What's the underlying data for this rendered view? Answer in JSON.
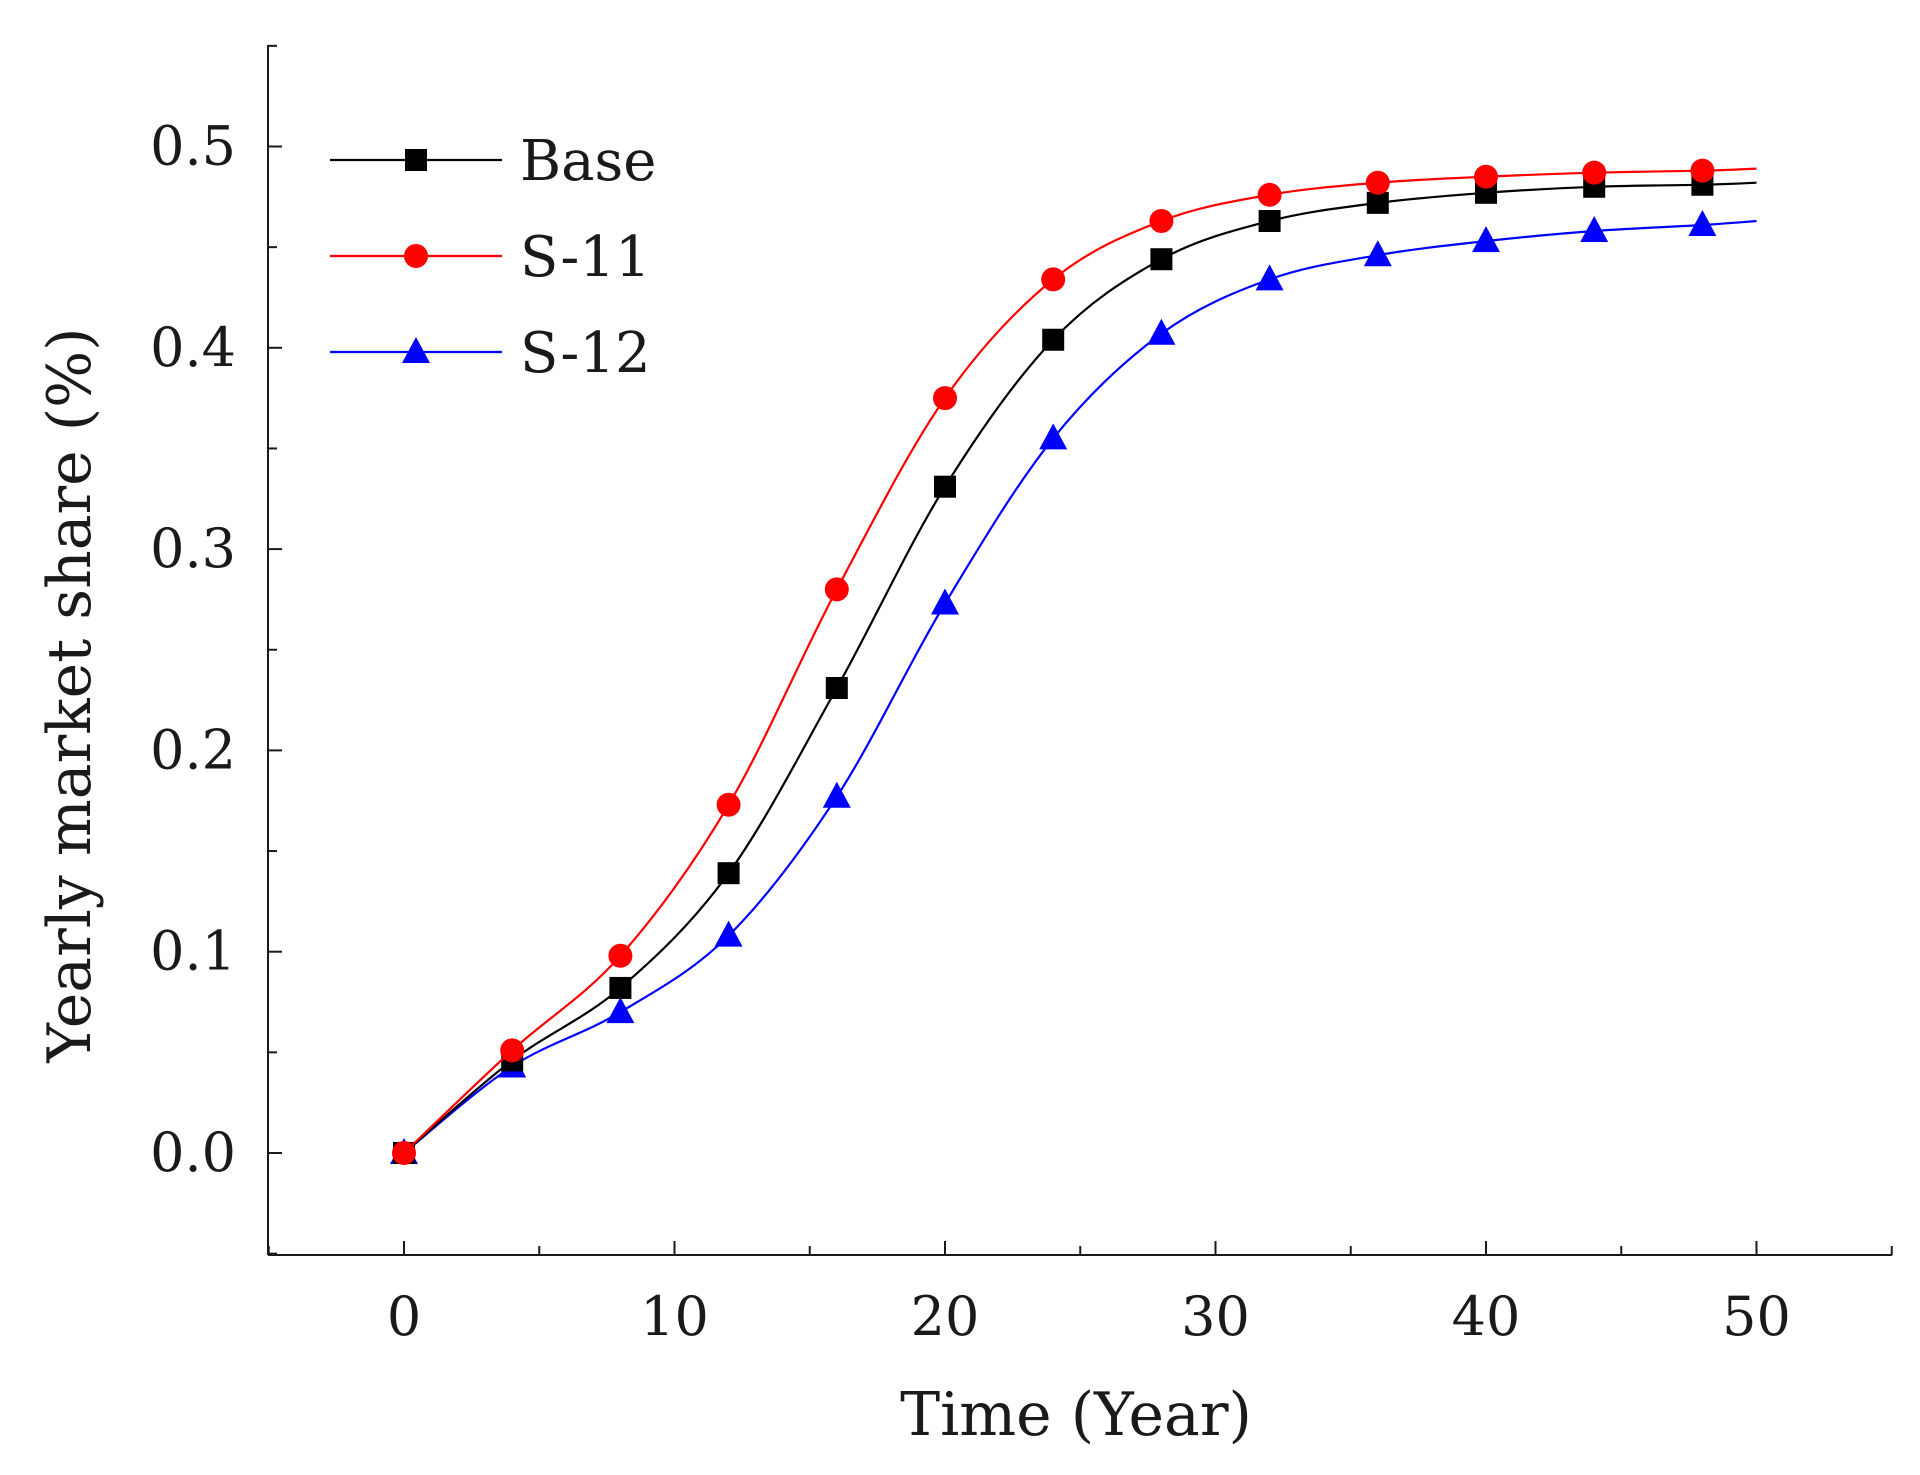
{
  "chart_data": {
    "type": "line",
    "title": "",
    "xlabel": "Time (Year)",
    "ylabel": "Yearly market share (%)",
    "xlim": [
      -5,
      55
    ],
    "ylim": [
      -0.05,
      0.55
    ],
    "xticks": [
      0,
      10,
      20,
      30,
      40,
      50
    ],
    "xtick_labels": [
      "0",
      "10",
      "20",
      "30",
      "40",
      "50"
    ],
    "yticks": [
      0.0,
      0.1,
      0.2,
      0.3,
      0.4,
      0.5
    ],
    "ytick_labels": [
      "0.0",
      "0.1",
      "0.2",
      "0.3",
      "0.4",
      "0.5"
    ],
    "grid": false,
    "legend_position": "top-left",
    "x": [
      0,
      4,
      8,
      12,
      16,
      20,
      24,
      28,
      32,
      36,
      40,
      44,
      48
    ],
    "series": [
      {
        "name": "Base",
        "color": "#000000",
        "marker": "square",
        "values": [
          0.0,
          0.046,
          0.082,
          0.139,
          0.231,
          0.331,
          0.404,
          0.444,
          0.463,
          0.472,
          0.477,
          0.48,
          0.481
        ],
        "end": 0.482
      },
      {
        "name": "S-11",
        "color": "#ff0000",
        "marker": "circle",
        "values": [
          0.0,
          0.051,
          0.098,
          0.173,
          0.28,
          0.375,
          0.434,
          0.463,
          0.476,
          0.482,
          0.485,
          0.487,
          0.488
        ],
        "end": 0.489
      },
      {
        "name": "S-12",
        "color": "#0000ff",
        "marker": "triangle",
        "values": [
          0.0,
          0.043,
          0.07,
          0.108,
          0.177,
          0.273,
          0.355,
          0.407,
          0.434,
          0.446,
          0.453,
          0.458,
          0.461
        ],
        "end": 0.463
      }
    ]
  }
}
